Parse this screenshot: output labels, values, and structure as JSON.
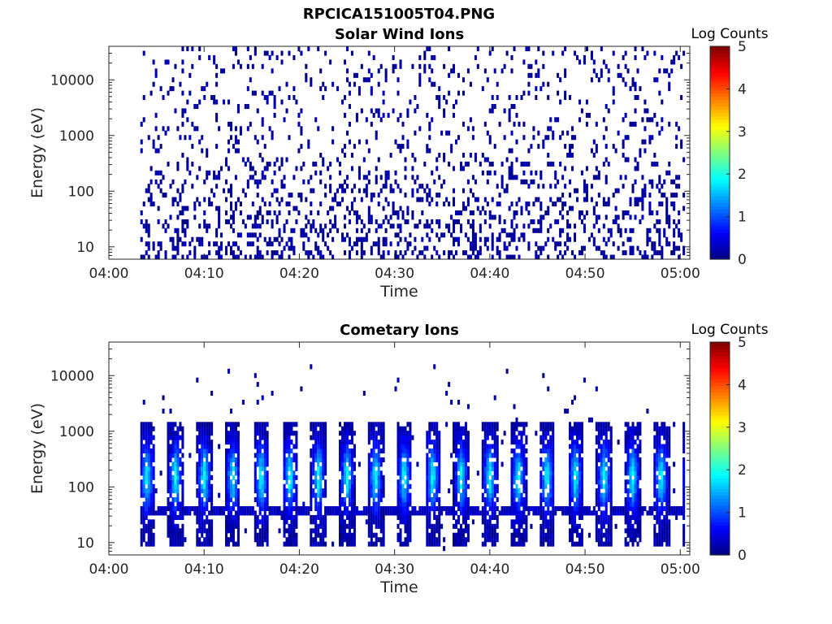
{
  "figure": {
    "title": "RPCICA151005T04.PNG"
  },
  "chart_data": [
    {
      "type": "heatmap",
      "title": "Solar Wind Ions",
      "xlabel": "Time",
      "ylabel": "Energy (eV)",
      "x_ticks": [
        "04:00",
        "04:10",
        "04:20",
        "04:30",
        "04:40",
        "04:50",
        "05:00"
      ],
      "x_range": [
        "04:00",
        "05:01"
      ],
      "y_scale": "log",
      "y_ticks": [
        "10",
        "100",
        "1000",
        "10000"
      ],
      "y_range": [
        6,
        40000
      ],
      "colorbar": {
        "label": "Log Counts",
        "ticks": [
          "0",
          "1",
          "2",
          "3",
          "4",
          "5"
        ],
        "range": [
          0,
          5
        ],
        "colormap": "jet"
      },
      "grid": false,
      "pattern": {
        "data_start_min": 3.2,
        "data_end_min": 60.5,
        "peak_level_log_counts": 0.3,
        "description_free": true
      }
    },
    {
      "type": "heatmap",
      "title": "Cometary Ions",
      "xlabel": "Time",
      "ylabel": "Energy (eV)",
      "x_ticks": [
        "04:00",
        "04:10",
        "04:20",
        "04:30",
        "04:40",
        "04:50",
        "05:00"
      ],
      "x_range": [
        "04:00",
        "05:01"
      ],
      "y_scale": "log",
      "y_ticks": [
        "10",
        "100",
        "1000",
        "10000"
      ],
      "y_range": [
        6,
        40000
      ],
      "colorbar": {
        "label": "Log Counts",
        "ticks": [
          "0",
          "1",
          "2",
          "3",
          "4",
          "5"
        ],
        "range": [
          0,
          5
        ],
        "colormap": "jet"
      },
      "grid": false,
      "pattern": {
        "data_start_min": 3.2,
        "data_end_min": 60.5,
        "burst_period_min": 3.0,
        "burst_energy_range_ev": [
          8,
          1500
        ],
        "peak_level_log_counts": 1.8
      }
    }
  ]
}
